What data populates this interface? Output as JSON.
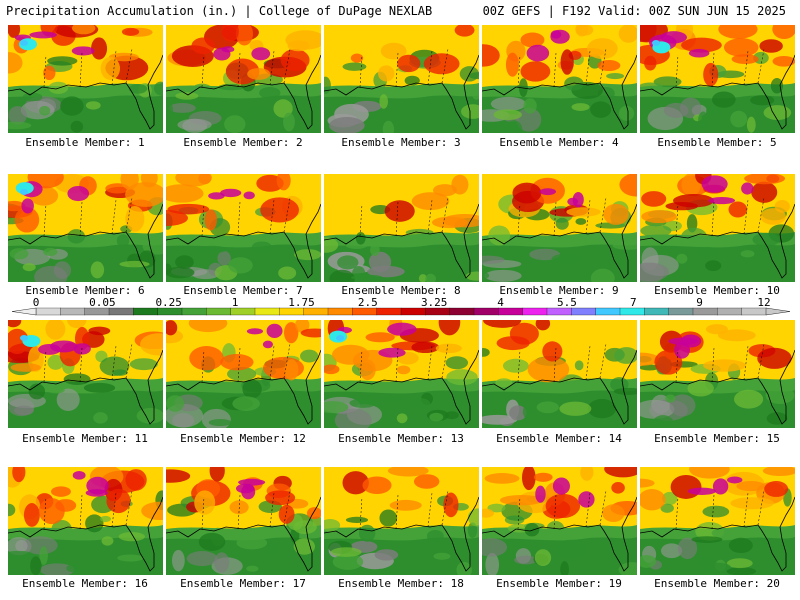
{
  "header": {
    "left_title": "Precipitation Accumulation (in.) | College of DuPage NEXLAB",
    "right_title": "00Z GEFS | F192 Valid: 00Z SUN JUN 15 2025"
  },
  "members": [
    {
      "label": "Ensemble Member: 1",
      "palette": "wetwest"
    },
    {
      "label": "Ensemble Member: 2",
      "palette": "wetnorth"
    },
    {
      "label": "Ensemble Member: 3",
      "palette": "dry"
    },
    {
      "label": "Ensemble Member: 4",
      "palette": "wetnorth"
    },
    {
      "label": "Ensemble Member: 5",
      "palette": "wetwest"
    },
    {
      "label": "Ensemble Member: 6",
      "palette": "wetwest"
    },
    {
      "label": "Ensemble Member: 7",
      "palette": "mid"
    },
    {
      "label": "Ensemble Member: 8",
      "palette": "dry"
    },
    {
      "label": "Ensemble Member: 9",
      "palette": "mid"
    },
    {
      "label": "Ensemble Member: 10",
      "palette": "wetnorth"
    },
    {
      "label": "Ensemble Member: 11",
      "palette": "wetwest"
    },
    {
      "label": "Ensemble Member: 12",
      "palette": "mid"
    },
    {
      "label": "Ensemble Member: 13",
      "palette": "wetwest"
    },
    {
      "label": "Ensemble Member: 14",
      "palette": "dry"
    },
    {
      "label": "Ensemble Member: 15",
      "palette": "mid"
    },
    {
      "label": "Ensemble Member: 16",
      "palette": "wetnorth"
    },
    {
      "label": "Ensemble Member: 17",
      "palette": "wetnorth"
    },
    {
      "label": "Ensemble Member: 18",
      "palette": "dry"
    },
    {
      "label": "Ensemble Member: 19",
      "palette": "wetnorth"
    },
    {
      "label": "Ensemble Member: 20",
      "palette": "mid"
    }
  ],
  "colorbar": {
    "labels": [
      "0",
      "0.05",
      "0.25",
      "1",
      "1.75",
      "2.5",
      "3.25",
      "4",
      "5.5",
      "7",
      "9",
      "12"
    ],
    "colors": [
      "#d8d8d8",
      "#b8b8b8",
      "#989898",
      "#787878",
      "#1e7a1e",
      "#2e8e2e",
      "#44a238",
      "#6cba34",
      "#a0d028",
      "#e8e816",
      "#ffd400",
      "#ffb000",
      "#ff8a00",
      "#ff5a00",
      "#ee2200",
      "#cc0000",
      "#a80014",
      "#8c0032",
      "#a00068",
      "#c8009a",
      "#ee22ee",
      "#c060ff",
      "#8080ff",
      "#40c8ff",
      "#30e8e8",
      "#40b8b8",
      "#7a9a9a",
      "#9a9a9a",
      "#b0b0b0",
      "#c8c8c8"
    ]
  },
  "map_colors": {
    "dry": [
      "#9a9a9a",
      "#7c7c7c",
      "#2e8e2e",
      "#44a238",
      "#1e7a1e",
      "#6cba34"
    ],
    "wet": [
      "#e8e816",
      "#ffd400",
      "#ffb000",
      "#ff8a00",
      "#ff5a00",
      "#ee2200",
      "#cc0000",
      "#c8009a"
    ],
    "extreme": [
      "#ee22ee",
      "#40c8ff",
      "#30e8e8"
    ],
    "coast": "#000000"
  }
}
